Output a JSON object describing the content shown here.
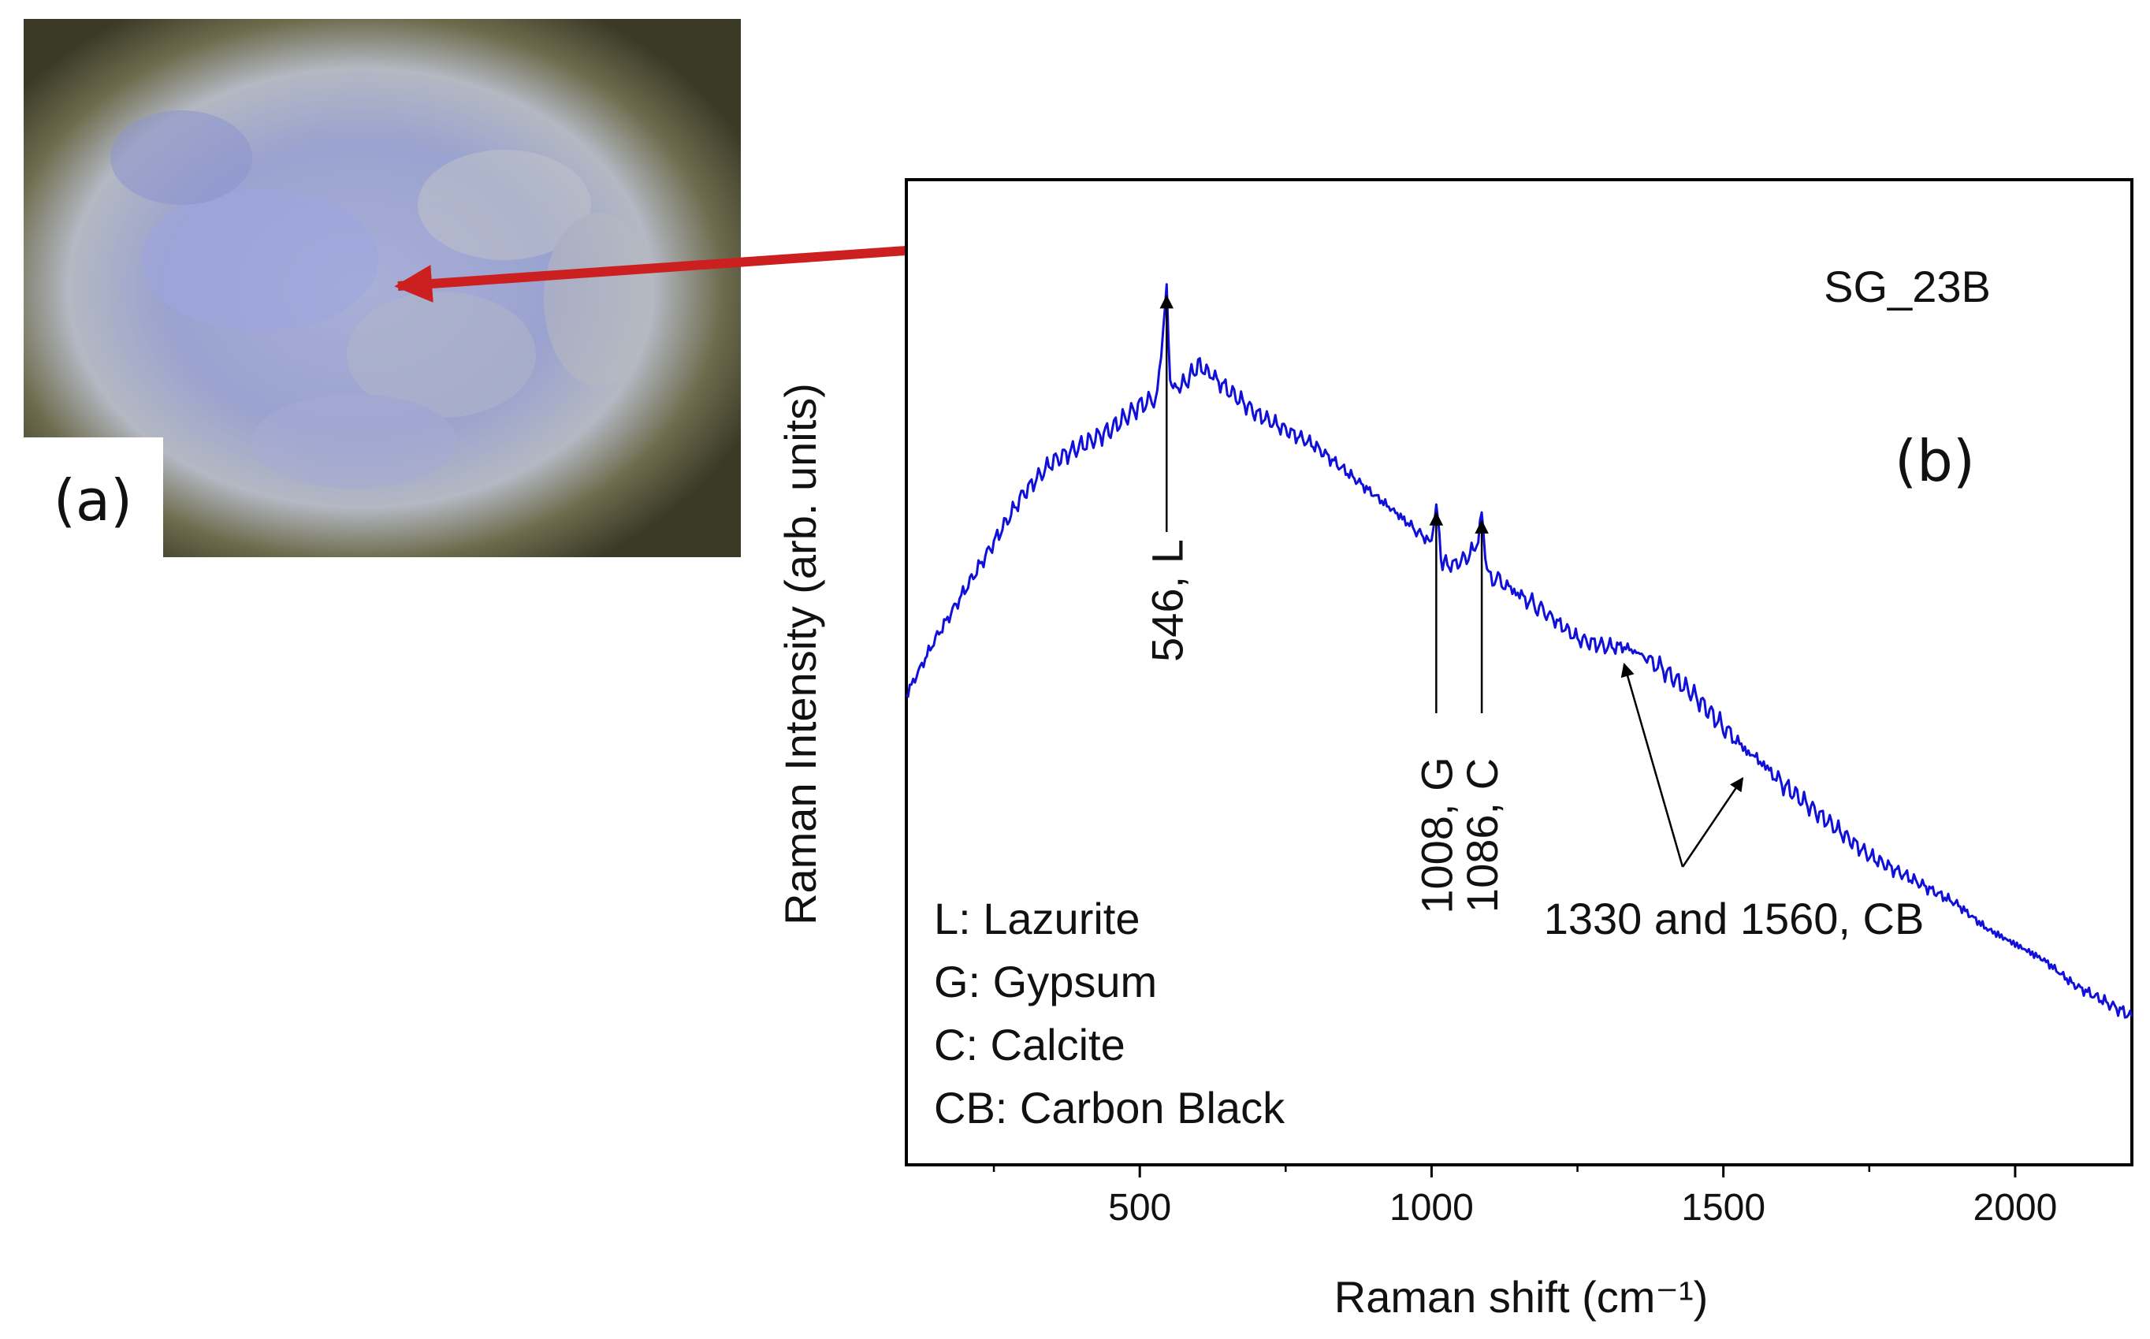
{
  "figure": {
    "panel_a_label": "(a)",
    "panel_b_label": "(b)",
    "sample_label": "SG_23B",
    "pointer_color": "#cc1f1f"
  },
  "chart_data": {
    "type": "line",
    "xlabel": "Raman shift (cm⁻¹)",
    "ylabel": "Raman Intensity (arb. units)",
    "xlim": [
      100,
      2200
    ],
    "ylim": [
      0,
      100
    ],
    "x_ticks": [
      500,
      1000,
      1500,
      2000
    ],
    "x_minor_ticks": [
      250,
      750,
      1250,
      1750,
      2250
    ],
    "series": [
      {
        "color": "#1010d8",
        "x": [
          100,
          150,
          200,
          250,
          300,
          350,
          400,
          450,
          500,
          530,
          540,
          546,
          552,
          560,
          580,
          600,
          620,
          650,
          700,
          750,
          800,
          850,
          900,
          950,
          980,
          1000,
          1008,
          1016,
          1030,
          1060,
          1080,
          1086,
          1095,
          1120,
          1160,
          1200,
          1250,
          1300,
          1330,
          1360,
          1400,
          1450,
          1500,
          1540,
          1560,
          1600,
          1650,
          1700,
          1750,
          1800,
          1850,
          1900,
          1950,
          2000,
          2050,
          2100,
          2150,
          2200
        ],
        "values": [
          41,
          48,
          54,
          60,
          66,
          70,
          72,
          74,
          77,
          78,
          86,
          92,
          80,
          79,
          80,
          82,
          81,
          79,
          76,
          74,
          72,
          69,
          66,
          63,
          61,
          60,
          65,
          58,
          57,
          58,
          60,
          64,
          56,
          55,
          53,
          51,
          48,
          47,
          47,
          46,
          44,
          41,
          37,
          34,
          33,
          30,
          27,
          24,
          21,
          19,
          17,
          15,
          12,
          10,
          8,
          5,
          3,
          1
        ]
      }
    ],
    "annotations": [
      {
        "text": "546, L",
        "x": 546
      },
      {
        "text": "1008, G",
        "x": 1008
      },
      {
        "text": "1086, C",
        "x": 1086
      },
      {
        "text": "1330 and 1560, CB",
        "x": [
          1330,
          1560
        ]
      }
    ],
    "legend": {
      "placement": "bottom-left",
      "lines": [
        "L: Lazurite",
        "G: Gypsum",
        "C: Calcite",
        "CB: Carbon Black"
      ]
    }
  }
}
